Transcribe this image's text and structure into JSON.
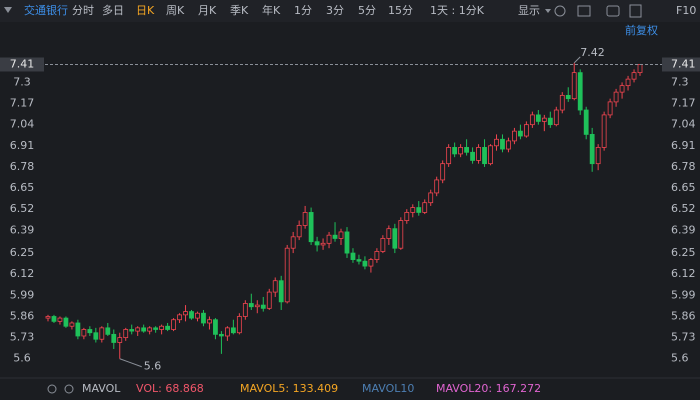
{
  "toolbar": {
    "stock": "交通银行",
    "tabs": [
      "分时",
      "多日",
      "日K",
      "周K",
      "月K",
      "季K",
      "年K",
      "1分",
      "3分",
      "5分",
      "15分",
      "1天 : 1分K"
    ],
    "active_tab": 2,
    "display": "显示",
    "f10": "F10"
  },
  "adjust": "前复权",
  "indicators": {
    "name": "MAVOL",
    "items": [
      {
        "text": "VOL: 68.868",
        "color": "#f0566a"
      },
      {
        "text": "MAVOL5: 133.409",
        "color": "#f5a623"
      },
      {
        "text": "MAVOL10",
        "color": "#4d7fb3"
      },
      {
        "text": "MAVOL20: 167.272",
        "color": "#e064d0"
      }
    ]
  },
  "chart_data": {
    "type": "candlestick",
    "up_color": "#f0454f",
    "down_color": "#1fc15a",
    "ylim": [
      5.5,
      7.45
    ],
    "yticks": [
      5.6,
      5.73,
      5.86,
      5.99,
      6.12,
      6.25,
      6.39,
      6.52,
      6.65,
      6.78,
      6.91,
      7.04,
      7.17,
      7.3
    ],
    "grid": false,
    "open": [
      5.85,
      5.86,
      5.83,
      5.85,
      5.8,
      5.82,
      5.74,
      5.78,
      5.76,
      5.72,
      5.79,
      5.75,
      5.7,
      5.73,
      5.78,
      5.77,
      5.79,
      5.77,
      5.79,
      5.78,
      5.8,
      5.78,
      5.84,
      5.87,
      5.89,
      5.85,
      5.88,
      5.82,
      5.84,
      5.75,
      5.74,
      5.79,
      5.76,
      5.86,
      5.94,
      5.92,
      5.93,
      5.91,
      6.01,
      6.08,
      5.95,
      6.28,
      6.35,
      6.42,
      6.5,
      6.32,
      6.3,
      6.31,
      6.36,
      6.34,
      6.38,
      6.25,
      6.21,
      6.2,
      6.17,
      6.21,
      6.26,
      6.34,
      6.4,
      6.28,
      6.45,
      6.5,
      6.53,
      6.5,
      6.56,
      6.62,
      6.7,
      6.8,
      6.9,
      6.86,
      6.9,
      6.87,
      6.82,
      6.9,
      6.8,
      6.91,
      6.95,
      6.89,
      6.94,
      7.0,
      6.97,
      7.04,
      7.1,
      7.06,
      7.08,
      7.04,
      7.13,
      7.22,
      7.2,
      7.36,
      7.13,
      6.98,
      6.8,
      6.9,
      7.1,
      7.18,
      7.24,
      7.28,
      7.32,
      7.36
    ],
    "high": [
      5.87,
      5.87,
      5.86,
      5.86,
      5.83,
      5.84,
      5.79,
      5.8,
      5.79,
      5.8,
      5.82,
      5.78,
      5.76,
      5.79,
      5.81,
      5.8,
      5.81,
      5.8,
      5.8,
      5.81,
      5.82,
      5.85,
      5.88,
      5.93,
      5.9,
      5.89,
      5.9,
      5.86,
      5.85,
      5.77,
      5.8,
      5.84,
      5.88,
      5.96,
      6.0,
      5.96,
      5.98,
      6.03,
      6.1,
      6.11,
      6.3,
      6.38,
      6.45,
      6.54,
      6.53,
      6.35,
      6.34,
      6.38,
      6.44,
      6.4,
      6.41,
      6.28,
      6.24,
      6.23,
      6.22,
      6.28,
      6.36,
      6.42,
      6.43,
      6.47,
      6.52,
      6.55,
      6.57,
      6.58,
      6.64,
      6.72,
      6.82,
      6.92,
      6.93,
      6.92,
      6.95,
      6.9,
      6.92,
      6.95,
      6.92,
      6.98,
      6.98,
      6.96,
      7.02,
      7.04,
      7.06,
      7.12,
      7.13,
      7.1,
      7.12,
      7.15,
      7.24,
      7.27,
      7.42,
      7.38,
      7.15,
      7.02,
      6.92,
      7.12,
      7.2,
      7.26,
      7.3,
      7.34,
      7.38,
      7.41
    ],
    "low": [
      5.83,
      5.82,
      5.81,
      5.79,
      5.78,
      5.72,
      5.72,
      5.74,
      5.7,
      5.7,
      5.74,
      5.66,
      5.6,
      5.71,
      5.75,
      5.74,
      5.76,
      5.75,
      5.76,
      5.75,
      5.77,
      5.77,
      5.82,
      5.83,
      5.84,
      5.83,
      5.8,
      5.78,
      5.72,
      5.63,
      5.71,
      5.75,
      5.75,
      5.84,
      5.9,
      5.88,
      5.89,
      5.9,
      5.98,
      5.9,
      5.94,
      6.25,
      6.33,
      6.4,
      6.3,
      6.26,
      6.27,
      6.28,
      6.32,
      6.3,
      6.22,
      6.19,
      6.18,
      6.15,
      6.13,
      6.19,
      6.25,
      6.3,
      6.25,
      6.27,
      6.43,
      6.47,
      6.48,
      6.49,
      6.54,
      6.6,
      6.68,
      6.78,
      6.84,
      6.84,
      6.85,
      6.8,
      6.8,
      6.78,
      6.79,
      6.88,
      6.87,
      6.87,
      6.92,
      6.95,
      6.96,
      7.02,
      7.04,
      7.0,
      7.02,
      7.03,
      7.11,
      7.18,
      7.19,
      7.1,
      6.95,
      6.75,
      6.76,
      6.88,
      7.08,
      7.15,
      7.2,
      7.25,
      7.3,
      7.34
    ],
    "close": [
      5.86,
      5.83,
      5.85,
      5.8,
      5.82,
      5.74,
      5.78,
      5.76,
      5.72,
      5.79,
      5.75,
      5.7,
      5.73,
      5.78,
      5.77,
      5.79,
      5.77,
      5.79,
      5.78,
      5.8,
      5.78,
      5.84,
      5.87,
      5.89,
      5.85,
      5.88,
      5.82,
      5.84,
      5.75,
      5.74,
      5.79,
      5.76,
      5.86,
      5.94,
      5.92,
      5.93,
      5.91,
      6.01,
      6.08,
      5.95,
      6.28,
      6.35,
      6.42,
      6.5,
      6.32,
      6.3,
      6.31,
      6.36,
      6.34,
      6.38,
      6.25,
      6.21,
      6.2,
      6.17,
      6.21,
      6.26,
      6.34,
      6.4,
      6.28,
      6.45,
      6.5,
      6.53,
      6.5,
      6.56,
      6.62,
      6.7,
      6.8,
      6.9,
      6.86,
      6.9,
      6.87,
      6.82,
      6.9,
      6.8,
      6.91,
      6.95,
      6.89,
      6.94,
      7.0,
      6.97,
      7.04,
      7.1,
      7.06,
      7.08,
      7.04,
      7.13,
      7.22,
      7.2,
      7.36,
      7.13,
      6.98,
      6.8,
      6.9,
      7.1,
      7.18,
      7.24,
      7.28,
      7.32,
      7.36,
      7.41
    ]
  }
}
